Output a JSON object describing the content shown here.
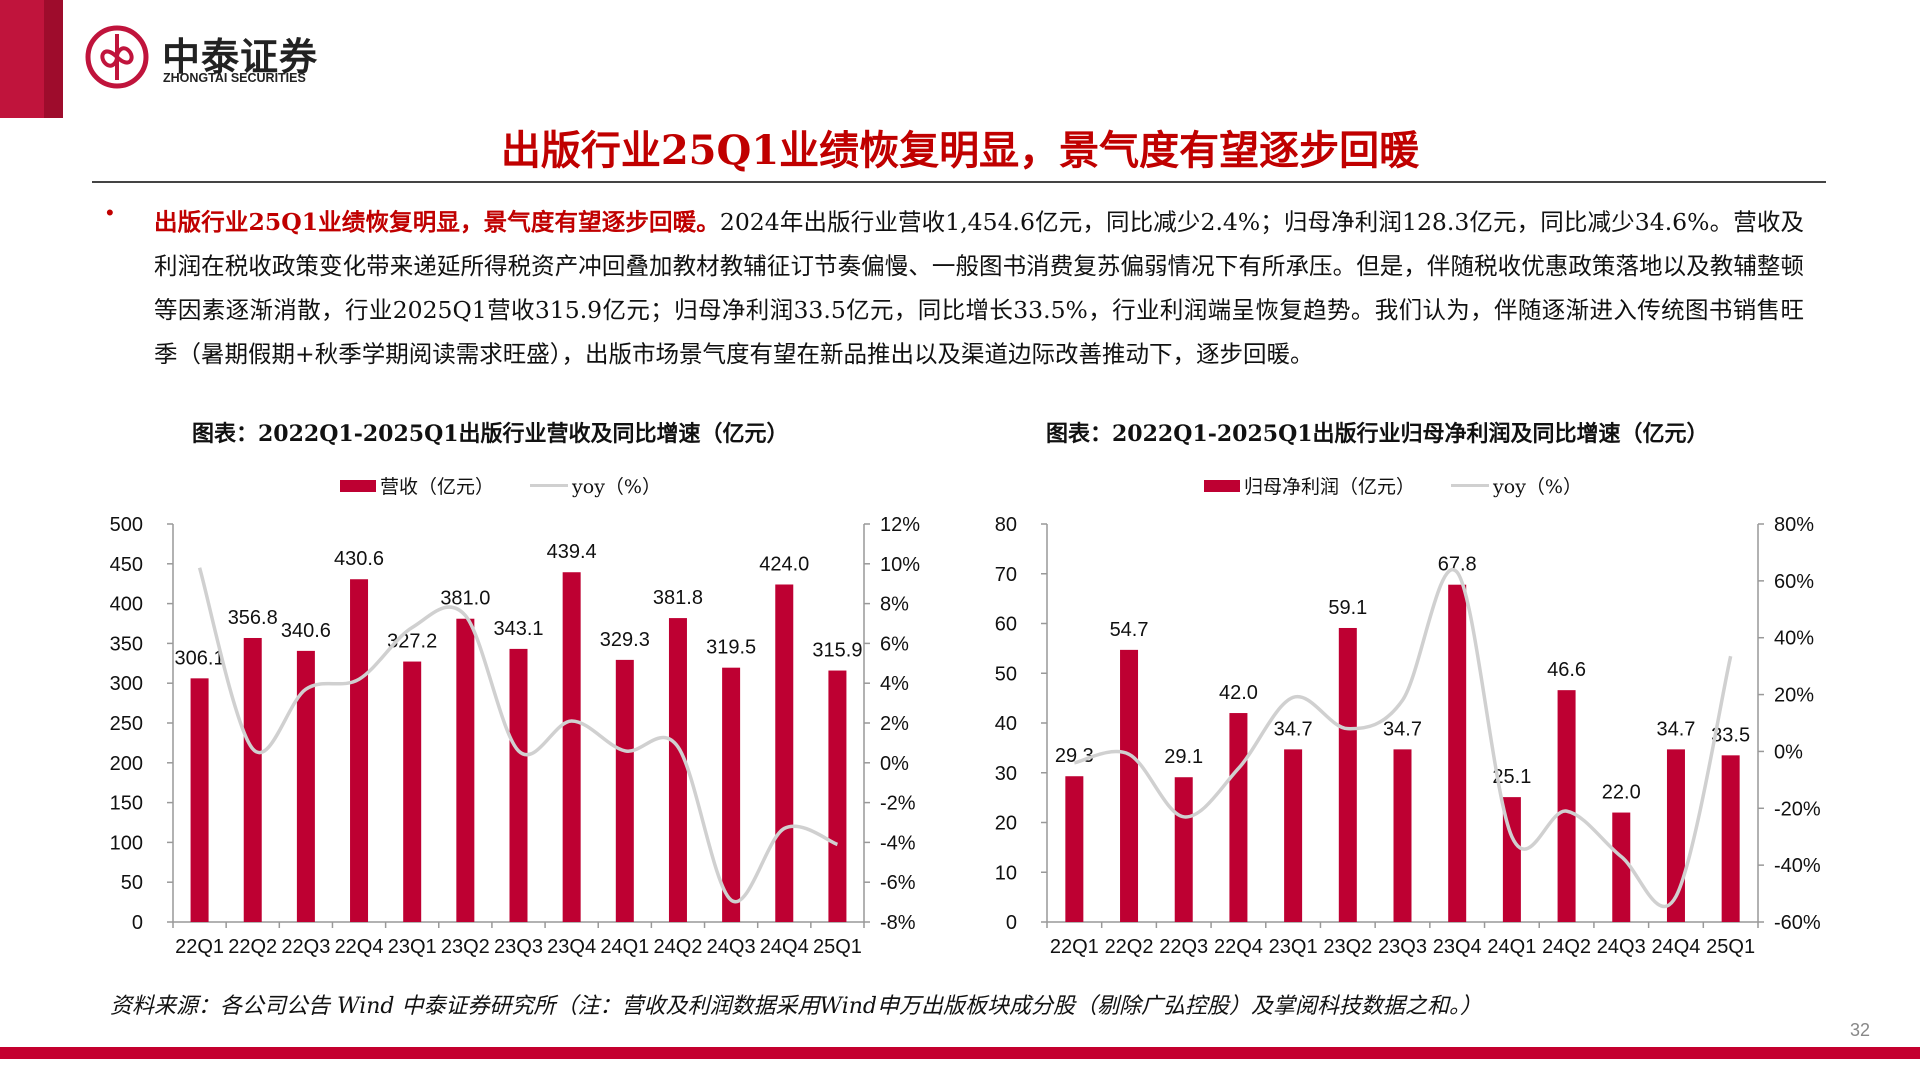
{
  "header": {
    "logo_cn": "中泰证券",
    "logo_en": "ZHONGTAI SECURITIES",
    "title": "出版行业25Q1业绩恢复明显，景气度有望逐步回暖"
  },
  "body": {
    "bullet": "•",
    "lead": "出版行业25Q1业绩恢复明显，景气度有望逐步回暖。",
    "text": "2024年出版行业营收1,454.6亿元，同比减少2.4%；归母净利润128.3亿元，同比减少34.6%。营收及利润在税收政策变化带来递延所得税资产冲回叠加教材教辅征订节奏偏慢、一般图书消费复苏偏弱情况下有所承压。但是，伴随税收优惠政策落地以及教辅整顿等因素逐渐消散，行业2025Q1营收315.9亿元；归母净利润33.5亿元，同比增长33.5%，行业利润端呈恢复趋势。我们认为，伴随逐渐进入传统图书销售旺季（暑期假期+秋季学期阅读需求旺盛），出版市场景气度有望在新品推出以及渠道边际改善推动下，逐步回暖。"
  },
  "colors": {
    "bar": "#be0032",
    "line": "#d0d0d0",
    "accent": "#c00000"
  },
  "chart_data": [
    {
      "type": "bar",
      "title": "图表：2022Q1-2025Q1出版行业营收及同比增速（亿元）",
      "categories": [
        "22Q1",
        "22Q2",
        "22Q3",
        "22Q4",
        "23Q1",
        "23Q2",
        "23Q3",
        "23Q4",
        "24Q1",
        "24Q2",
        "24Q3",
        "24Q4",
        "25Q1"
      ],
      "series": [
        {
          "name": "营收（亿元）",
          "type": "bar",
          "axis": "left",
          "values": [
            306.1,
            356.8,
            340.6,
            430.6,
            327.2,
            381.0,
            343.1,
            439.4,
            329.3,
            381.8,
            319.5,
            424.0,
            315.9
          ],
          "labels": [
            "306.1",
            "356.8",
            "340.6",
            "430.6",
            "327.2",
            "381.0",
            "343.1",
            "439.4",
            "329.3",
            "381.8",
            "319.5",
            "424.0",
            "315.9"
          ]
        },
        {
          "name": "yoy（%）",
          "type": "line",
          "axis": "right",
          "values": [
            9.8,
            0.7,
            3.7,
            4.2,
            6.8,
            7.4,
            0.6,
            2.1,
            0.6,
            0.8,
            -6.9,
            -3.3,
            -4.1
          ]
        }
      ],
      "ylim": [
        0,
        500
      ],
      "yticks": [
        "0",
        "50",
        "100",
        "150",
        "200",
        "250",
        "300",
        "350",
        "400",
        "450",
        "500"
      ],
      "y2lim": [
        -8,
        12
      ],
      "y2ticks": [
        "-8%",
        "-6%",
        "-4%",
        "-2%",
        "0%",
        "2%",
        "4%",
        "6%",
        "8%",
        "10%",
        "12%"
      ],
      "legend": "top-center",
      "grid": false
    },
    {
      "type": "bar",
      "title": "图表：2022Q1-2025Q1出版行业归母净利润及同比增速（亿元）",
      "categories": [
        "22Q1",
        "22Q2",
        "22Q3",
        "22Q4",
        "23Q1",
        "23Q2",
        "23Q3",
        "23Q4",
        "24Q1",
        "24Q2",
        "24Q3",
        "24Q4",
        "25Q1"
      ],
      "series": [
        {
          "name": "归母净利润（亿元）",
          "type": "bar",
          "axis": "left",
          "values": [
            29.3,
            54.7,
            29.1,
            42.0,
            34.7,
            59.1,
            34.7,
            67.8,
            25.1,
            46.6,
            22.0,
            34.7,
            33.5
          ],
          "labels": [
            "29.3",
            "54.7",
            "29.1",
            "42.0",
            "34.7",
            "59.1",
            "34.7",
            "67.8",
            "25.1",
            "46.6",
            "22.0",
            "34.7",
            "33.5"
          ]
        },
        {
          "name": "yoy（%）",
          "type": "line",
          "axis": "right",
          "values": [
            -4,
            -1,
            -23,
            -6,
            19,
            8,
            18,
            63,
            -30,
            -21,
            -37,
            -51,
            33.5
          ]
        }
      ],
      "ylim": [
        0,
        80
      ],
      "yticks": [
        "0",
        "10",
        "20",
        "30",
        "40",
        "50",
        "60",
        "70",
        "80"
      ],
      "y2lim": [
        -60,
        80
      ],
      "y2ticks": [
        "-60%",
        "-40%",
        "-20%",
        "0%",
        "20%",
        "40%",
        "60%",
        "80%"
      ],
      "legend": "top-center",
      "grid": false
    }
  ],
  "footer": {
    "source": "资料来源：各公司公告 Wind 中泰证券研究所（注：营收及利润数据采用Wind申万出版板块成分股（剔除广弘控股）及掌阅科技数据之和。）",
    "page": "32"
  }
}
